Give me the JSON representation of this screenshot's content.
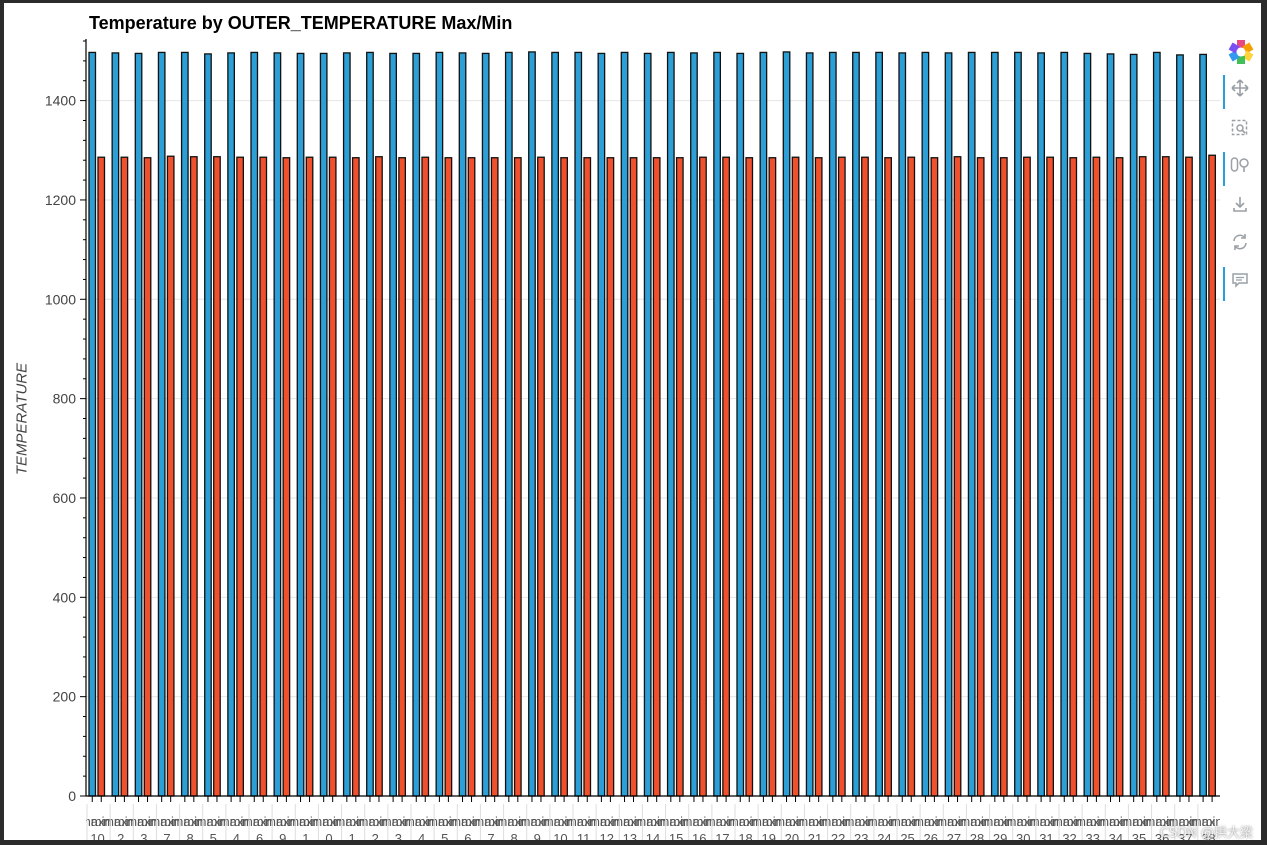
{
  "chart_data": {
    "type": "bar",
    "title": "Temperature by OUTER_TEMPERATURE Max/Min",
    "ylabel": "TEMPERATURE",
    "xlabel": "",
    "ylim": [
      0,
      1520
    ],
    "yticks": [
      0,
      200,
      400,
      600,
      800,
      1000,
      1200,
      1400
    ],
    "grid": "horizontal",
    "colors": {
      "max": "#2b9fd6",
      "min": "#f0512c"
    },
    "categories": [
      "10",
      "2",
      "3",
      "7",
      "8",
      "5",
      "4",
      "6",
      "9",
      "1",
      "0",
      "1",
      "2",
      "3",
      "4",
      "5",
      "6",
      "7",
      "8",
      "9",
      "10",
      "11",
      "12",
      "13",
      "14",
      "15",
      "16",
      "17",
      "18",
      "19",
      "20",
      "21",
      "22",
      "23",
      "24",
      "25",
      "26",
      "27",
      "28",
      "29",
      "30",
      "31",
      "32",
      "33",
      "34",
      "35",
      "36",
      "37",
      "38"
    ],
    "series": [
      {
        "name": "max",
        "values": [
          1497,
          1496,
          1495,
          1497,
          1497,
          1494,
          1496,
          1497,
          1496,
          1495,
          1495,
          1496,
          1497,
          1495,
          1495,
          1497,
          1496,
          1495,
          1497,
          1498,
          1497,
          1497,
          1495,
          1497,
          1495,
          1497,
          1496,
          1497,
          1495,
          1497,
          1498,
          1496,
          1497,
          1497,
          1497,
          1496,
          1497,
          1496,
          1497,
          1497,
          1497,
          1496,
          1497,
          1495,
          1494,
          1493,
          1497,
          1492,
          1493
        ]
      },
      {
        "name": "min",
        "values": [
          1286,
          1286,
          1285,
          1288,
          1287,
          1287,
          1286,
          1286,
          1285,
          1286,
          1286,
          1285,
          1287,
          1285,
          1286,
          1285,
          1285,
          1285,
          1285,
          1286,
          1285,
          1285,
          1285,
          1285,
          1285,
          1285,
          1286,
          1286,
          1285,
          1285,
          1286,
          1285,
          1286,
          1286,
          1285,
          1286,
          1285,
          1287,
          1285,
          1285,
          1286,
          1286,
          1285,
          1286,
          1285,
          1287,
          1287,
          1286,
          1290
        ]
      }
    ]
  },
  "toolbar": {
    "tools": [
      "pan-icon",
      "box-zoom-icon",
      "wheel-zoom-icon",
      "save-icon",
      "reset-icon",
      "hover-icon"
    ]
  },
  "watermark": "CSDN @拱大梁"
}
